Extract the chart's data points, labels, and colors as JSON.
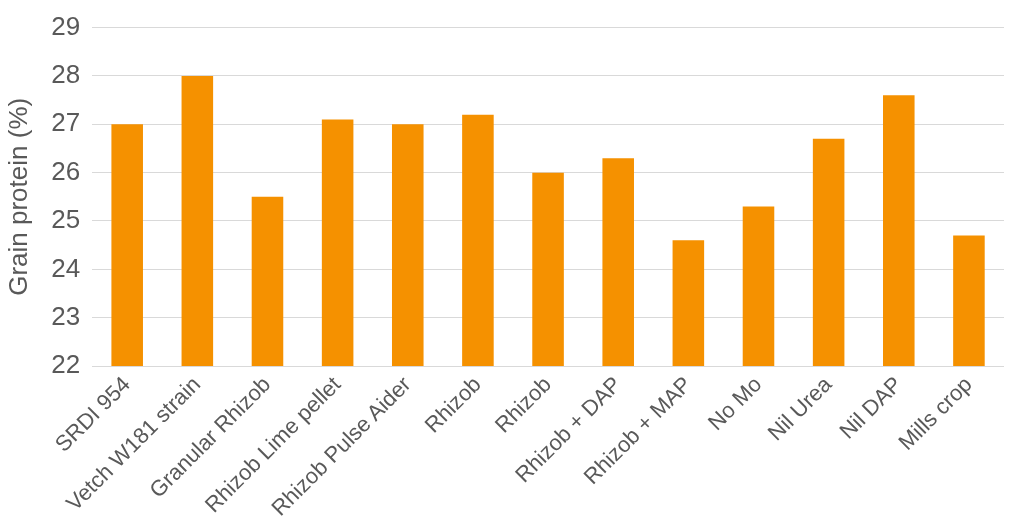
{
  "chart_data": {
    "type": "bar",
    "ylabel": "Grain protein (%)",
    "categories": [
      "SRDI 954",
      "Vetch W181 strain",
      "Granular Rhizob",
      "Rhizob Lime pellet",
      "Rhizob Pulse Aider",
      "Rhizob",
      "Rhizob",
      "Rhizob + DAP",
      "Rhizob + MAP",
      "No Mo",
      "Nil Urea",
      "Nil DAP",
      "Mills crop"
    ],
    "values": [
      27.0,
      28.0,
      25.5,
      27.1,
      27.0,
      27.2,
      26.0,
      26.3,
      24.6,
      25.3,
      26.7,
      27.6,
      24.7
    ],
    "color": "#f59100",
    "ylim": [
      22,
      29
    ],
    "yticks": [
      22,
      23,
      24,
      25,
      26,
      27,
      28,
      29
    ],
    "grid": "y"
  }
}
